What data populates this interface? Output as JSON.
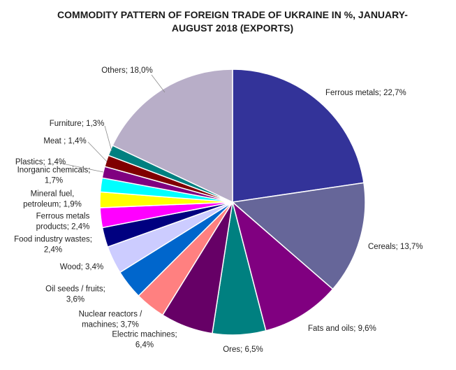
{
  "chart_data": {
    "type": "pie",
    "title_lines": [
      "COMMODITY PATTERN OF FOREIGN TRADE OF UKRAINE IN %, JANUARY-",
      "AUGUST 2018 (EXPORTS)"
    ],
    "slices": [
      {
        "name": "Ferrous metals",
        "value": 22.7,
        "label_lines": [
          "Ferrous metals; 22,7%"
        ],
        "color": "#333399"
      },
      {
        "name": "Cereals",
        "value": 13.7,
        "label_lines": [
          "Cereals; 13,7%"
        ],
        "color": "#666699"
      },
      {
        "name": "Fats and oils",
        "value": 9.6,
        "label_lines": [
          "Fats and oils; 9,6%"
        ],
        "color": "#800080"
      },
      {
        "name": "Ores",
        "value": 6.5,
        "label_lines": [
          "Ores; 6,5%"
        ],
        "color": "#008080"
      },
      {
        "name": "Electric machines",
        "value": 6.4,
        "label_lines": [
          "Electric machines;",
          "6,4%"
        ],
        "color": "#660066"
      },
      {
        "name": "Nuclear reactors / machines",
        "value": 3.7,
        "label_lines": [
          "Nuclear reactors /",
          "machines; 3,7%"
        ],
        "color": "#ff8080"
      },
      {
        "name": "Oil seeds / fruits",
        "value": 3.6,
        "label_lines": [
          "Oil seeds / fruits;",
          "3,6%"
        ],
        "color": "#0066cc"
      },
      {
        "name": "Wood",
        "value": 3.4,
        "label_lines": [
          "Wood; 3,4%"
        ],
        "color": "#ccccff"
      },
      {
        "name": "Food industry wastes",
        "value": 2.4,
        "label_lines": [
          "Food industry wastes;",
          "2,4%"
        ],
        "color": "#000080"
      },
      {
        "name": "Ferrous metals products",
        "value": 2.4,
        "label_lines": [
          "Ferrous metals",
          "products; 2,4%"
        ],
        "color": "#ff00ff"
      },
      {
        "name": "Mineral fuel, petroleum",
        "value": 1.9,
        "label_lines": [
          "Mineral fuel,",
          "petroleum; 1,9%"
        ],
        "color": "#ffff00"
      },
      {
        "name": "Inorganic chemicals",
        "value": 1.7,
        "label_lines": [
          "Inorganic chemicals;",
          "1,7%"
        ],
        "color": "#00ffff"
      },
      {
        "name": "Plastics",
        "value": 1.4,
        "label_lines": [
          "Plastics; 1,4%"
        ],
        "color": "#800080"
      },
      {
        "name": "Meat",
        "value": 1.4,
        "label_lines": [
          "Meat ; 1,4%"
        ],
        "color": "#800000"
      },
      {
        "name": "Furniture",
        "value": 1.3,
        "label_lines": [
          "Furniture; 1,3%"
        ],
        "color": "#008080"
      },
      {
        "name": "Others",
        "value": 18.0,
        "label_lines": [
          "Others; 18,0%"
        ],
        "color": "#b8aec8"
      }
    ],
    "start": "12 o'clock",
    "direction": "clockwise",
    "legend": "none"
  }
}
